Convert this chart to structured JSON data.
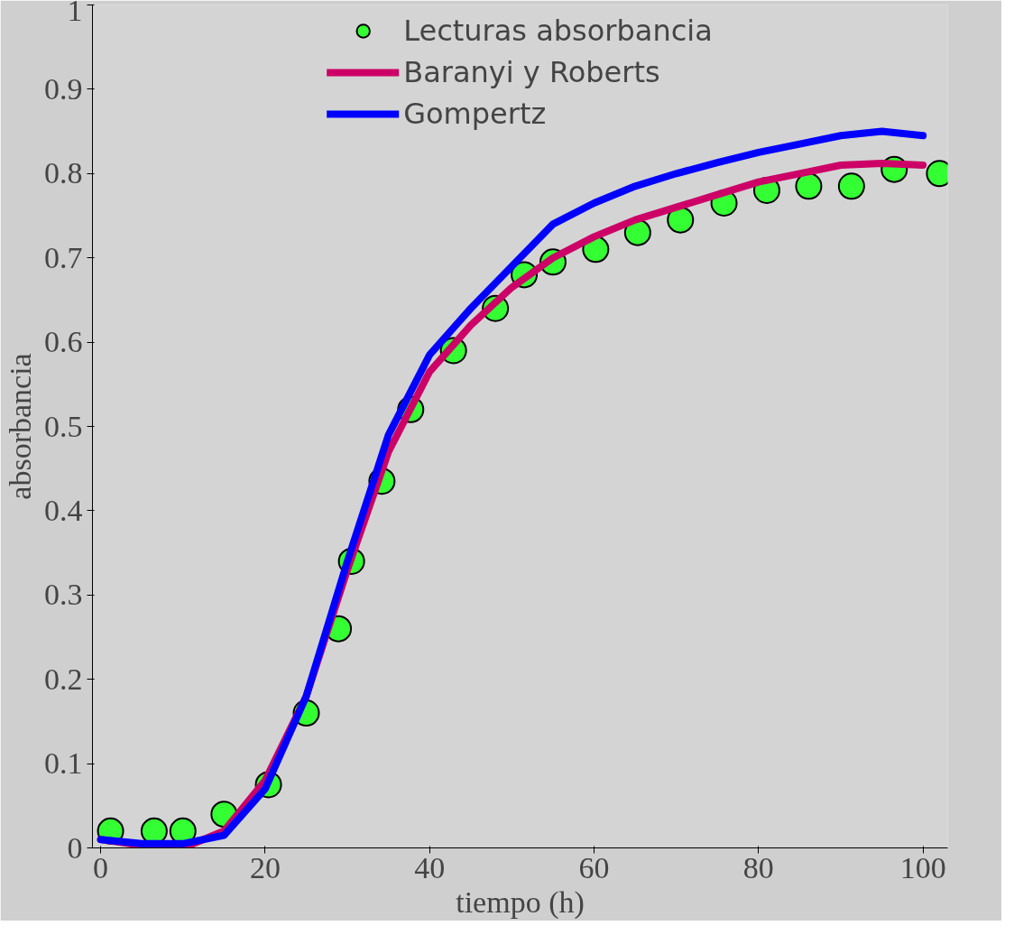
{
  "chart_data": {
    "type": "scatter",
    "xlabel": "tiempo (h)",
    "ylabel": "absorbancia",
    "xlim": [
      -1,
      103
    ],
    "ylim": [
      0,
      1
    ],
    "xticks": [
      0,
      20,
      40,
      60,
      80,
      100
    ],
    "yticks": [
      0,
      0.1,
      0.2,
      0.3,
      0.4,
      0.5,
      0.6,
      0.7,
      0.8,
      0.9,
      1
    ],
    "grid": false,
    "legend": "top",
    "series": [
      {
        "name": "Lecturas absorbancia",
        "marker": "circle",
        "color": "#33ff33",
        "x": [
          1.2,
          6.5,
          10,
          15,
          20.4,
          25,
          28.9,
          30.5,
          34.2,
          37.7,
          42.9,
          48,
          51.5,
          55,
          60.2,
          65.3,
          70.5,
          75.8,
          81,
          86.1,
          91.3,
          96.5,
          102
        ],
        "values": [
          0.02,
          0.02,
          0.02,
          0.04,
          0.075,
          0.16,
          0.26,
          0.34,
          0.435,
          0.52,
          0.59,
          0.64,
          0.68,
          0.695,
          0.71,
          0.73,
          0.745,
          0.765,
          0.78,
          0.785,
          0.785,
          0.805,
          0.8
        ]
      },
      {
        "name": "Baranyi y Roberts",
        "type": "line",
        "color": "#cc0066",
        "x": [
          0,
          5,
          10,
          15,
          20,
          25,
          30,
          35,
          40,
          45,
          50,
          55,
          60,
          65,
          70,
          75,
          80,
          85,
          90,
          95,
          100
        ],
        "values": [
          0.01,
          0.003,
          0.0,
          0.02,
          0.08,
          0.18,
          0.33,
          0.47,
          0.565,
          0.62,
          0.665,
          0.7,
          0.725,
          0.745,
          0.76,
          0.775,
          0.79,
          0.8,
          0.81,
          0.812,
          0.81
        ]
      },
      {
        "name": "Gompertz",
        "type": "line",
        "color": "#0000ff",
        "x": [
          0,
          5,
          10,
          15,
          20,
          25,
          30,
          35,
          40,
          45,
          50,
          55,
          60,
          65,
          70,
          75,
          80,
          85,
          90,
          95,
          100
        ],
        "values": [
          0.01,
          0.005,
          0.005,
          0.015,
          0.07,
          0.18,
          0.34,
          0.49,
          0.585,
          0.64,
          0.69,
          0.74,
          0.765,
          0.785,
          0.8,
          0.813,
          0.825,
          0.835,
          0.845,
          0.85,
          0.845
        ]
      }
    ]
  }
}
